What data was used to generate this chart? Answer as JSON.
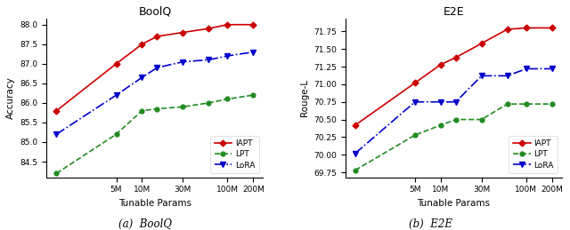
{
  "boolq": {
    "title": "BoolQ",
    "xlabel": "Tunable Params",
    "ylabel": "Accuracy",
    "caption": "(a)  BoolQ",
    "x_values": [
      1000000,
      5000000,
      10000000,
      15000000,
      30000000,
      60000000,
      100000000,
      200000000
    ],
    "x_tick_vals": [
      5000000,
      10000000,
      30000000,
      100000000,
      200000000
    ],
    "x_tick_labels": [
      "5M",
      "10M",
      "30M",
      "100M",
      "200M"
    ],
    "IAPT": [
      85.8,
      87.0,
      87.5,
      87.7,
      87.8,
      87.9,
      88.0,
      88.0
    ],
    "LPT": [
      84.2,
      85.2,
      85.8,
      85.85,
      85.9,
      86.0,
      86.1,
      86.2
    ],
    "LoRA": [
      85.2,
      86.2,
      86.65,
      86.9,
      87.05,
      87.1,
      87.2,
      87.3
    ],
    "ylim": [
      84.1,
      88.15
    ],
    "yticks": [
      84.5,
      85.0,
      85.5,
      86.0,
      86.5,
      87.0,
      87.5,
      88.0
    ]
  },
  "e2e": {
    "title": "E2E",
    "xlabel": "Tunable Params",
    "ylabel": "Rouge-L",
    "caption": "(b)  E2E",
    "x_values": [
      1000000,
      5000000,
      10000000,
      15000000,
      30000000,
      60000000,
      100000000,
      200000000
    ],
    "x_tick_vals": [
      5000000,
      10000000,
      30000000,
      100000000,
      200000000
    ],
    "x_tick_labels": [
      "5M",
      "10M",
      "30M",
      "100M",
      "200M"
    ],
    "IAPT": [
      70.42,
      71.02,
      71.28,
      71.38,
      71.58,
      71.78,
      71.8,
      71.8
    ],
    "LPT": [
      69.78,
      70.28,
      70.42,
      70.5,
      70.5,
      70.72,
      70.72,
      70.72
    ],
    "LoRA": [
      70.02,
      70.75,
      70.75,
      70.75,
      71.12,
      71.12,
      71.22,
      71.22
    ],
    "ylim": [
      69.68,
      71.93
    ],
    "yticks": [
      69.75,
      70.0,
      70.25,
      70.5,
      70.75,
      71.0,
      71.25,
      71.5,
      71.75
    ]
  },
  "colors": {
    "IAPT": "#cc0000",
    "LPT": "#228B22",
    "LoRA": "#0000cc"
  }
}
